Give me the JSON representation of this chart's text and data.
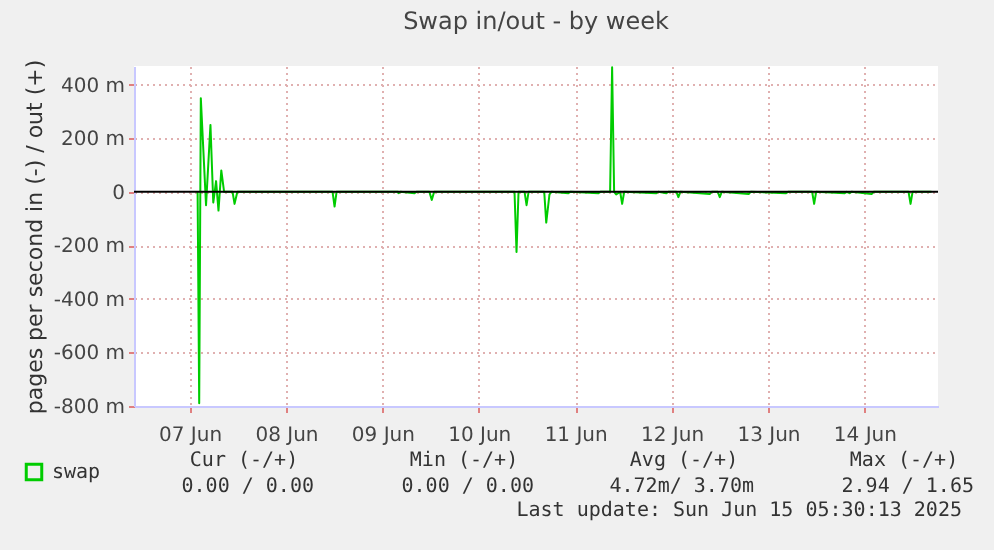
{
  "chart_data": {
    "type": "line",
    "title": "Swap in/out - by week",
    "ylabel": "pages per second in (-) / out (+)",
    "x": [
      "2025-06-07T14:00",
      "2025-06-07T14:24",
      "2025-06-07T14:48",
      "2025-06-07T16:06",
      "2025-06-07T17:12",
      "2025-06-07T17:54",
      "2025-06-07T18:36",
      "2025-06-07T19:12",
      "2025-06-07T19:54",
      "2025-06-07T20:36",
      "2025-06-07T22:42",
      "2025-06-07T23:12",
      "2025-06-07T23:54",
      "2025-06-08T23:36",
      "2025-06-09T00:06",
      "2025-06-09T00:36",
      "2025-06-09T15:54",
      "2025-06-09T16:00",
      "2025-06-09T16:30",
      "2025-06-09T20:00",
      "2025-06-09T20:30",
      "2025-06-09T23:42",
      "2025-06-10T00:18",
      "2025-06-10T00:54",
      "2025-06-10T20:54",
      "2025-06-10T21:24",
      "2025-06-10T21:54",
      "2025-06-10T23:24",
      "2025-06-10T23:54",
      "2025-06-11T00:24",
      "2025-06-11T04:18",
      "2025-06-11T04:48",
      "2025-06-11T05:36",
      "2025-06-11T06:06",
      "2025-06-11T10:18",
      "2025-06-11T10:48",
      "2025-06-11T17:48",
      "2025-06-11T18:18",
      "2025-06-11T20:42",
      "2025-06-11T21:12",
      "2025-06-11T21:42",
      "2025-06-11T22:12",
      "2025-06-11T23:12",
      "2025-06-11T23:42",
      "2025-06-12T00:12",
      "2025-06-12T08:12",
      "2025-06-12T08:42",
      "2025-06-12T10:42",
      "2025-06-12T11:12",
      "2025-06-12T13:12",
      "2025-06-12T13:42",
      "2025-06-12T14:12",
      "2025-06-12T21:30",
      "2025-06-12T22:00",
      "2025-06-12T23:30",
      "2025-06-13T00:00",
      "2025-06-13T00:30",
      "2025-06-13T07:12",
      "2025-06-13T07:42",
      "2025-06-13T16:30",
      "2025-06-13T17:00",
      "2025-06-13T23:00",
      "2025-06-13T23:30",
      "2025-06-14T00:00",
      "2025-06-14T07:06",
      "2025-06-14T07:36",
      "2025-06-14T08:18",
      "2025-06-14T08:48",
      "2025-06-14T13:48",
      "2025-06-14T14:18",
      "2025-06-14T23:00",
      "2025-06-14T23:30",
      "2025-06-15T00:00",
      "2025-06-15T04:42"
    ],
    "series": [
      {
        "name": "swap",
        "color": "#00cc00",
        "values": [
          0,
          -790,
          350,
          -50,
          250,
          -40,
          40,
          -70,
          80,
          0,
          0,
          -45,
          0,
          0,
          -55,
          0,
          0,
          -5,
          0,
          -5,
          0,
          0,
          -30,
          0,
          0,
          -225,
          0,
          0,
          -50,
          0,
          0,
          -115,
          -10,
          0,
          -5,
          0,
          -5,
          0,
          0,
          465,
          0,
          -10,
          0,
          -45,
          0,
          -5,
          0,
          -5,
          0,
          0,
          -20,
          0,
          -8,
          0,
          0,
          -20,
          0,
          -8,
          0,
          -5,
          0,
          0,
          -45,
          0,
          -5,
          0,
          -5,
          0,
          -8,
          0,
          0,
          -45,
          0,
          0
        ]
      }
    ],
    "xlim": [
      "2025-06-06T22:10",
      "2025-06-15T06:20"
    ],
    "xticks": [
      {
        "value": "2025-06-07T12:00",
        "label": "07 Jun"
      },
      {
        "value": "2025-06-08T12:00",
        "label": "08 Jun"
      },
      {
        "value": "2025-06-09T12:00",
        "label": "09 Jun"
      },
      {
        "value": "2025-06-10T12:00",
        "label": "10 Jun"
      },
      {
        "value": "2025-06-11T12:00",
        "label": "11 Jun"
      },
      {
        "value": "2025-06-12T12:00",
        "label": "12 Jun"
      },
      {
        "value": "2025-06-13T12:00",
        "label": "13 Jun"
      },
      {
        "value": "2025-06-14T12:00",
        "label": "14 Jun"
      }
    ],
    "ylim": [
      -800,
      470
    ],
    "yticks": [
      {
        "value": -800,
        "label": "-800 m"
      },
      {
        "value": -600,
        "label": "-600 m"
      },
      {
        "value": -400,
        "label": "-400 m"
      },
      {
        "value": -200,
        "label": "-200 m"
      },
      0,
      {
        "value": 200,
        "label": "200 m"
      },
      {
        "value": 400,
        "label": "400 m"
      }
    ],
    "ref_lines": [
      {
        "axis": "y",
        "value": 0,
        "color": "#000000"
      }
    ],
    "grid": true,
    "legend": "bottom left",
    "marker": "none",
    "line_style": "solid",
    "annotations": [
      "Cur (-/+)",
      "Min (-/+)",
      "Avg (-/+)",
      "Max (-/+)",
      "0.00 /  0.00",
      "0.00 /  0.00",
      "4.72m/  3.70m",
      "2.94 /  1.65",
      "Last update: Sun Jun 15 05:30:13 2025"
    ]
  }
}
